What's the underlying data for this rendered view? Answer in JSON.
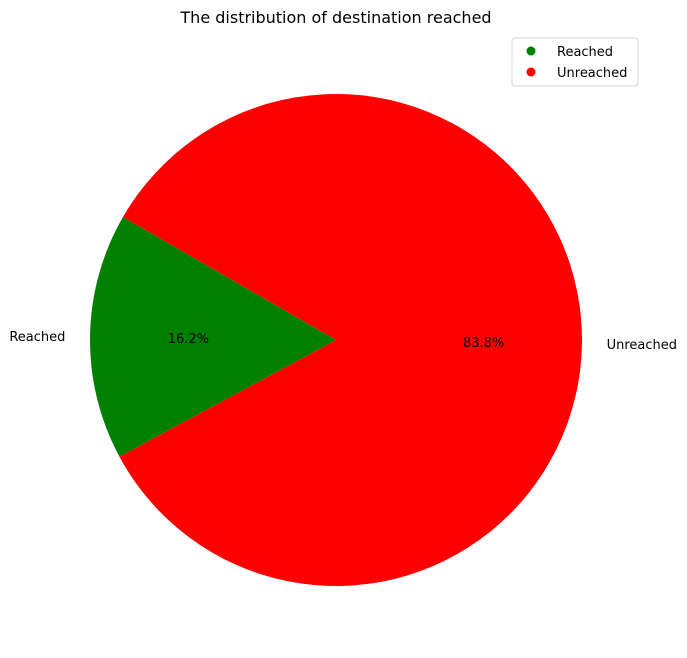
{
  "chart_data": {
    "type": "pie",
    "title": "The distribution of destination reached",
    "categories": [
      "Reached",
      "Unreached"
    ],
    "values": [
      16.2,
      83.8
    ],
    "percent_labels": [
      "16.2%",
      "83.8%"
    ],
    "colors": [
      "#008000",
      "#ff0000"
    ],
    "start_angle_deg": 150,
    "direction": "counterclockwise",
    "legend": {
      "position": "top-right",
      "entries": [
        "Reached",
        "Unreached"
      ]
    }
  }
}
